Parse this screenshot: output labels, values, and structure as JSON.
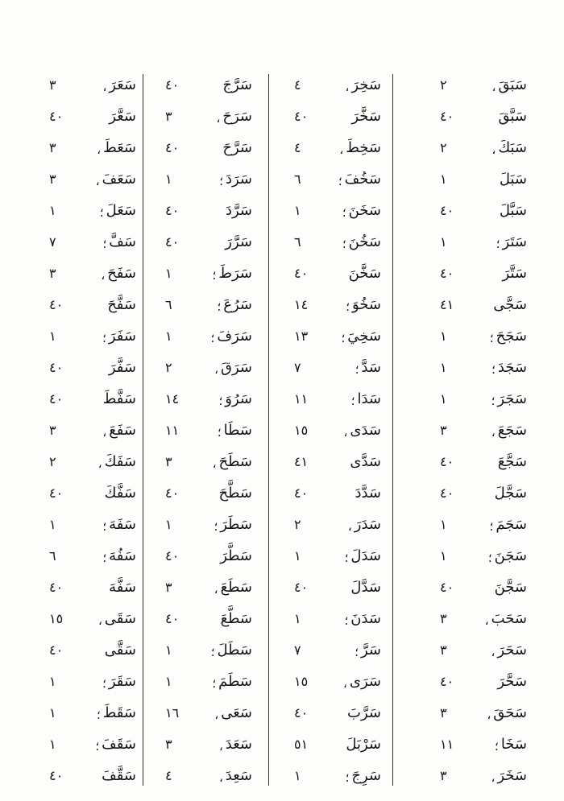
{
  "page": {
    "language": "Arabic",
    "description": "Arabic verb index page, four columns of root entries with conjugation-class numbers",
    "background_color": "#fdfdfb",
    "text_color": "#161616",
    "rule_color": "#2e2e2e"
  },
  "columns": [
    {
      "position": "rightmost",
      "entries": [
        {
          "w": "سَبَقَ",
          "m": "،",
          "n": "٢"
        },
        {
          "w": "سَبَّقَ",
          "m": "",
          "n": "٤٠"
        },
        {
          "w": "سَبَكَ",
          "m": "،",
          "n": "٢"
        },
        {
          "w": "سَبَلَ",
          "m": "",
          "n": "١"
        },
        {
          "w": "سَبَّلَ",
          "m": "",
          "n": "٤٠"
        },
        {
          "w": "سَتَرَ",
          "m": "؛",
          "n": "١"
        },
        {
          "w": "سَتَّرَ",
          "m": "",
          "n": "٤٠"
        },
        {
          "w": "سَجَّى",
          "m": "",
          "n": "٤١"
        },
        {
          "w": "سَجَحَ",
          "m": "؛",
          "n": "١"
        },
        {
          "w": "سَجَدَ",
          "m": "؛",
          "n": "١"
        },
        {
          "w": "سَجَرَ",
          "m": "؛",
          "n": "١"
        },
        {
          "w": "سَجَعَ",
          "m": "،",
          "n": "٣"
        },
        {
          "w": "سَجَّعَ",
          "m": "",
          "n": "٤٠"
        },
        {
          "w": "سَجَّلَ",
          "m": "",
          "n": "٤٠"
        },
        {
          "w": "سَجَمَ",
          "m": "؛",
          "n": "١"
        },
        {
          "w": "سَجَنَ",
          "m": "؛",
          "n": "١"
        },
        {
          "w": "سَجَّنَ",
          "m": "",
          "n": "٤٠"
        },
        {
          "w": "سَحَبَ",
          "m": "،",
          "n": "٣"
        },
        {
          "w": "سَحَرَ",
          "m": "،",
          "n": "٣"
        },
        {
          "w": "سَحَّرَ",
          "m": "",
          "n": "٤٠"
        },
        {
          "w": "سَحَقَ",
          "m": "،",
          "n": "٣"
        },
        {
          "w": "سَخَا",
          "m": "؛",
          "n": "١١"
        },
        {
          "w": "سَخَرَ",
          "m": "،",
          "n": "٣"
        }
      ]
    },
    {
      "position": "second-from-right",
      "entries": [
        {
          "w": "سَخِرَ",
          "m": "،",
          "n": "٤"
        },
        {
          "w": "سَخَّرَ",
          "m": "",
          "n": "٤٠"
        },
        {
          "w": "سَخِطَ",
          "m": "،",
          "n": "٤"
        },
        {
          "w": "سَخُفَ",
          "m": "؛",
          "n": "٦"
        },
        {
          "w": "سَخَنَ",
          "m": "؛",
          "n": "١"
        },
        {
          "w": "سَخُنَ",
          "m": "؛",
          "n": "٦"
        },
        {
          "w": "سَخَّنَ",
          "m": "",
          "n": "٤٠"
        },
        {
          "w": "سَخُوَ",
          "m": "؛",
          "n": "١٤"
        },
        {
          "w": "سَخِيَ",
          "m": "؛",
          "n": "١٣"
        },
        {
          "w": "سَدَّ",
          "m": "؛",
          "n": "٧"
        },
        {
          "w": "سَدَا",
          "m": "؛",
          "n": "١١"
        },
        {
          "w": "سَدَى",
          "m": "،",
          "n": "١٥"
        },
        {
          "w": "سَدَّى",
          "m": "",
          "n": "٤١"
        },
        {
          "w": "سَدَّدَ",
          "m": "",
          "n": "٤٠"
        },
        {
          "w": "سَدَرَ",
          "m": "،",
          "n": "٢"
        },
        {
          "w": "سَدَلَ",
          "m": "؛",
          "n": "١"
        },
        {
          "w": "سَدَّلَ",
          "m": "",
          "n": "٤٠"
        },
        {
          "w": "سَدَنَ",
          "m": "؛",
          "n": "١"
        },
        {
          "w": "سَرَّ",
          "m": "؛",
          "n": "٧"
        },
        {
          "w": "سَرَى",
          "m": "،",
          "n": "١٥"
        },
        {
          "w": "سَرَّبَ",
          "m": "",
          "n": "٤٠"
        },
        {
          "w": "سَرْبَلَ",
          "m": "",
          "n": "٥١"
        },
        {
          "w": "سَرِجَ",
          "m": "؛",
          "n": "١"
        }
      ]
    },
    {
      "position": "third-from-right",
      "entries": [
        {
          "w": "سَرَّجَ",
          "m": "",
          "n": "٤٠"
        },
        {
          "w": "سَرَحَ",
          "m": "،",
          "n": "٣"
        },
        {
          "w": "سَرَّحَ",
          "m": "",
          "n": "٤٠"
        },
        {
          "w": "سَرَدَ",
          "m": "؛",
          "n": "١"
        },
        {
          "w": "سَرَّدَ",
          "m": "",
          "n": "٤٠"
        },
        {
          "w": "سَرَّرَ",
          "m": "",
          "n": "٤٠"
        },
        {
          "w": "سَرَطَ",
          "m": "؛",
          "n": "١"
        },
        {
          "w": "سَرُعَ",
          "m": "؛",
          "n": "٦"
        },
        {
          "w": "سَرَفَ",
          "m": "؛",
          "n": "١"
        },
        {
          "w": "سَرَقَ",
          "m": "،",
          "n": "٢"
        },
        {
          "w": "سَرُوَ",
          "m": "؛",
          "n": "١٤"
        },
        {
          "w": "سَطَا",
          "m": "؛",
          "n": "١١"
        },
        {
          "w": "سَطَحَ",
          "m": "،",
          "n": "٣"
        },
        {
          "w": "سَطَّحَ",
          "m": "",
          "n": "٤٠"
        },
        {
          "w": "سَطَرَ",
          "m": "؛",
          "n": "١"
        },
        {
          "w": "سَطَّرَ",
          "m": "",
          "n": "٤٠"
        },
        {
          "w": "سَطَعَ",
          "m": "،",
          "n": "٣"
        },
        {
          "w": "سَطَّعَ",
          "m": "",
          "n": "٤٠"
        },
        {
          "w": "سَطَلَ",
          "m": "؛",
          "n": "١"
        },
        {
          "w": "سَطَمَ",
          "m": "؛",
          "n": "١"
        },
        {
          "w": "سَعَى",
          "m": "،",
          "n": "١٦"
        },
        {
          "w": "سَعَدَ",
          "m": "،",
          "n": "٣"
        },
        {
          "w": "سَعِدَ",
          "m": "،",
          "n": "٤"
        }
      ]
    },
    {
      "position": "leftmost",
      "entries": [
        {
          "w": "سَعَرَ",
          "m": "،",
          "n": "٣"
        },
        {
          "w": "سَعَّرَ",
          "m": "",
          "n": "٤٠"
        },
        {
          "w": "سَعَطَ",
          "m": "،",
          "n": "٣"
        },
        {
          "w": "سَعَفَ",
          "m": "،",
          "n": "٣"
        },
        {
          "w": "سَعَلَ",
          "m": "؛",
          "n": "١"
        },
        {
          "w": "سَفَّ",
          "m": "؛",
          "n": "٧"
        },
        {
          "w": "سَفَحَ",
          "m": "،",
          "n": "٣"
        },
        {
          "w": "سَفَّحَ",
          "m": "",
          "n": "٤٠"
        },
        {
          "w": "سَفَرَ",
          "m": "؛",
          "n": "١"
        },
        {
          "w": "سَفَّرَ",
          "m": "",
          "n": "٤٠"
        },
        {
          "w": "سَفَّطَ",
          "m": "",
          "n": "٤٠"
        },
        {
          "w": "سَفَعَ",
          "m": "،",
          "n": "٣"
        },
        {
          "w": "سَفَكَ",
          "m": "،",
          "n": "٢"
        },
        {
          "w": "سَفَّكَ",
          "m": "",
          "n": "٤٠"
        },
        {
          "w": "سَفَهَ",
          "m": "؛",
          "n": "١"
        },
        {
          "w": "سَفُهَ",
          "m": "؛",
          "n": "٦"
        },
        {
          "w": "سَفَّهَ",
          "m": "",
          "n": "٤٠"
        },
        {
          "w": "سَقَى",
          "m": "،",
          "n": "١٥"
        },
        {
          "w": "سَقَّى",
          "m": "",
          "n": "٤٠"
        },
        {
          "w": "سَقَرَ",
          "m": "؛",
          "n": "١"
        },
        {
          "w": "سَقَطَ",
          "m": "؛",
          "n": "١"
        },
        {
          "w": "سَقَفَ",
          "m": "؛",
          "n": "١"
        },
        {
          "w": "سَقَّفَ",
          "m": "",
          "n": "٤٠"
        }
      ]
    }
  ]
}
